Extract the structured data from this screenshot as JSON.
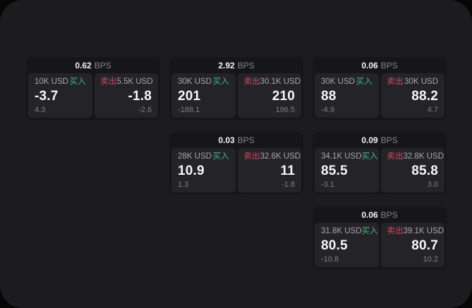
{
  "labels": {
    "buy": "买入",
    "sell": "卖出",
    "bps_unit": "BPS"
  },
  "colors": {
    "outer_bg": "#060607",
    "panel_bg": "#1c1c1e",
    "card_bg": "#161619",
    "tile_bg": "#242428",
    "buy_green": "#46b478",
    "sell_red": "#cf4a5e",
    "value_white": "#f7f7f8",
    "muted_gray": "#7e7e83"
  },
  "cards": [
    {
      "bps_value": "0.62",
      "buy": {
        "amount": "10K USD",
        "price": "-3.7",
        "delta": "4.3"
      },
      "sell": {
        "amount": "5.5K USD",
        "price": "-1.8",
        "delta": "-2.6"
      }
    },
    {
      "bps_value": "2.92",
      "buy": {
        "amount": "30K USD",
        "price": "201",
        "delta": "-188.1"
      },
      "sell": {
        "amount": "30.1K USD",
        "price": "210",
        "delta": "196.5"
      }
    },
    {
      "bps_value": "0.06",
      "buy": {
        "amount": "30K USD",
        "price": "88",
        "delta": "-4.9"
      },
      "sell": {
        "amount": "30K USD",
        "price": "88.2",
        "delta": "4.7"
      }
    },
    {
      "bps_value": "0.03",
      "buy": {
        "amount": "28K USD",
        "price": "10.9",
        "delta": "1.3"
      },
      "sell": {
        "amount": "32.6K USD",
        "price": "11",
        "delta": "-1.8"
      }
    },
    {
      "bps_value": "0.09",
      "buy": {
        "amount": "34.1K USD",
        "price": "85.5",
        "delta": "-3.1"
      },
      "sell": {
        "amount": "32.8K USD",
        "price": "85.8",
        "delta": "3.0"
      }
    },
    {
      "bps_value": "0.06",
      "buy": {
        "amount": "31.8K USD",
        "price": "80.5",
        "delta": "-10.8"
      },
      "sell": {
        "amount": "39.1K USD",
        "price": "80.7",
        "delta": "10.2"
      }
    }
  ]
}
